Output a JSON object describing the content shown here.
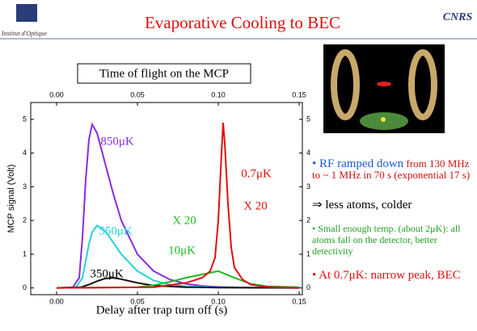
{
  "header": {
    "title": "Evaporative Cooling to BEC",
    "left_logo": "Institut d'Optique",
    "right_logo": "CNRS"
  },
  "notes": [
    {
      "lead": "• RF ramped down",
      "text": "from 130 MHz to ~ 1 MHz in 70 s (exponential 17 s)"
    },
    {
      "text": "⇒ less atoms, colder"
    },
    {
      "text": "• Small enough temp. (about 2μK): all atoms fall on the detector, better detectivity"
    },
    {
      "text": "• At 0.7μK: narrow peak, BEC"
    }
  ],
  "chart_data": {
    "type": "line",
    "title": "Time of flight on the MCP",
    "x_label": "Delay after trap turn off (s)",
    "y_label": "MCP signal (Volt)",
    "xlim": [
      -0.016,
      0.152
    ],
    "ylim": [
      -0.2,
      5.5
    ],
    "xticks": [
      {
        "value": 0,
        "label": "0.00"
      },
      {
        "value": 0.05,
        "label": "0.05"
      },
      {
        "value": 0.1,
        "label": "0.10"
      },
      {
        "value": 0.15,
        "label": "0.15"
      }
    ],
    "yticks": [
      0,
      1,
      2,
      3,
      4,
      5
    ],
    "series": [
      {
        "name": "850μK",
        "color": "#8a2be2",
        "x": [
          0,
          0.01,
          0.014,
          0.016,
          0.018,
          0.02,
          0.022,
          0.025,
          0.03,
          0.035,
          0.04,
          0.05,
          0.06,
          0.07,
          0.08,
          0.09,
          0.1,
          0.12,
          0.15
        ],
        "values": [
          0,
          0.02,
          0.3,
          1.5,
          3.2,
          4.4,
          4.85,
          4.6,
          3.7,
          2.8,
          2.0,
          1.0,
          0.5,
          0.25,
          0.12,
          0.06,
          0.03,
          0.01,
          0
        ]
      },
      {
        "name": "550μK",
        "color": "#22d3dd",
        "x": [
          0,
          0.012,
          0.016,
          0.018,
          0.02,
          0.022,
          0.025,
          0.03,
          0.035,
          0.04,
          0.05,
          0.06,
          0.07,
          0.08,
          0.1,
          0.12,
          0.15
        ],
        "values": [
          0,
          0.02,
          0.3,
          0.8,
          1.3,
          1.65,
          1.85,
          1.7,
          1.35,
          1.0,
          0.5,
          0.22,
          0.1,
          0.05,
          0.02,
          0.01,
          0
        ]
      },
      {
        "name": "350μK",
        "color": "#111111",
        "x": [
          0,
          0.015,
          0.02,
          0.025,
          0.03,
          0.035,
          0.04,
          0.05,
          0.06,
          0.08,
          0.1,
          0.15
        ],
        "values": [
          0,
          0.02,
          0.1,
          0.2,
          0.28,
          0.3,
          0.26,
          0.15,
          0.07,
          0.02,
          0.01,
          0
        ]
      },
      {
        "name": "10μK",
        "color": "#22bb22",
        "x": [
          0,
          0.05,
          0.06,
          0.07,
          0.08,
          0.09,
          0.095,
          0.1,
          0.105,
          0.11,
          0.12,
          0.13,
          0.15
        ],
        "values": [
          0,
          0.02,
          0.08,
          0.18,
          0.3,
          0.4,
          0.45,
          0.5,
          0.4,
          0.3,
          0.12,
          0.05,
          0.02
        ]
      },
      {
        "name": "0.7μK",
        "color": "#e01010",
        "x": [
          0,
          0.06,
          0.08,
          0.09,
          0.095,
          0.098,
          0.1,
          0.102,
          0.103,
          0.104,
          0.106,
          0.108,
          0.11,
          0.115,
          0.12,
          0.13,
          0.15
        ],
        "values": [
          0,
          0.02,
          0.15,
          0.3,
          0.5,
          0.9,
          2.0,
          4.0,
          4.9,
          4.3,
          2.5,
          1.2,
          0.6,
          0.25,
          0.1,
          0.03,
          0
        ]
      }
    ],
    "annotations": [
      {
        "text": "X 20",
        "color": "#22bb22"
      },
      {
        "text": "X 20",
        "color": "#e01010"
      }
    ]
  }
}
